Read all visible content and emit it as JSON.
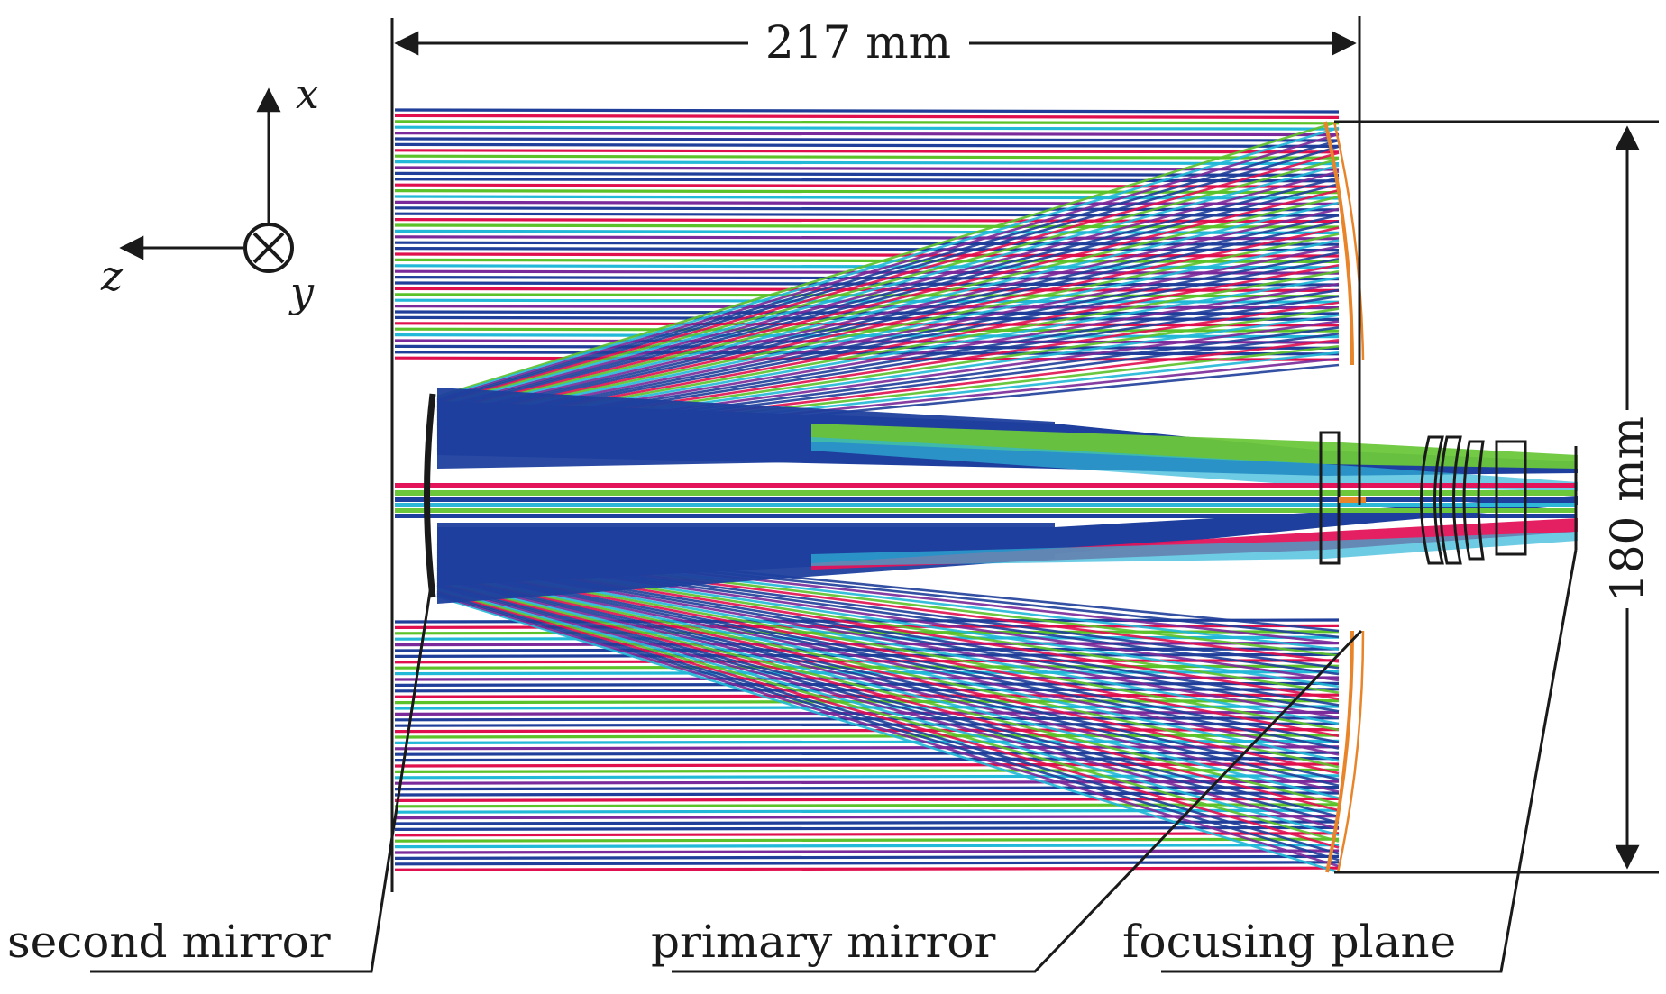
{
  "diagram": {
    "dimensions": {
      "length": "217 mm",
      "height": "180 mm"
    },
    "axes": {
      "x": "x",
      "y": "y",
      "z": "z"
    },
    "labels": {
      "second_mirror": "second mirror",
      "primary_mirror": "primary mirror",
      "focusing_plane": "focusing plane"
    },
    "colors": {
      "ray_blue": "#1f3f9a",
      "ray_red": "#e0104f",
      "ray_green": "#5cc22a",
      "ray_cyan": "#22b8d8",
      "ray_purple": "#7a2a9a",
      "mirror_orange": "#e8842a",
      "line": "#1a1a1a"
    },
    "icons": [
      "axis-arrow-x-icon",
      "axis-arrow-z-icon",
      "into-page-y-icon"
    ]
  }
}
